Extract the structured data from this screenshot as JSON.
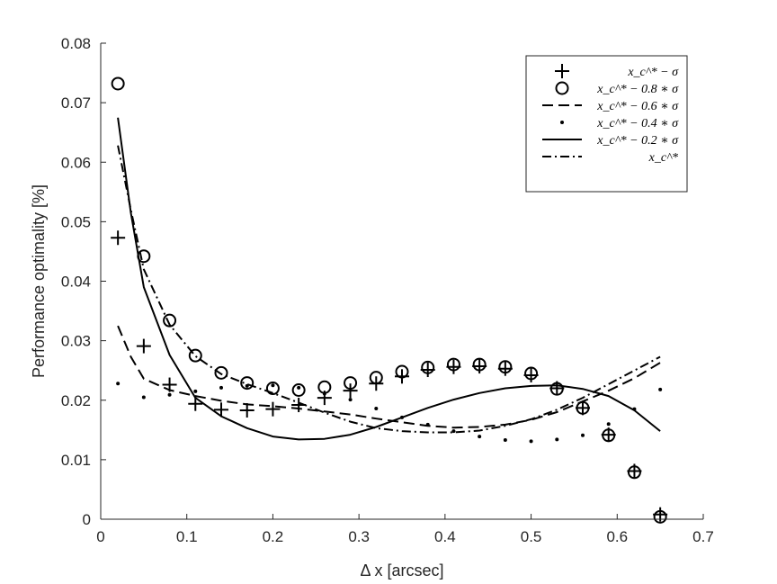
{
  "chart_data": {
    "type": "line",
    "title": "",
    "xlabel": "Δ x [arcsec]",
    "ylabel": "Performance optimality [%]",
    "xlim": [
      0,
      0.7
    ],
    "ylim": [
      0,
      0.08
    ],
    "xticks": [
      0,
      0.1,
      0.2,
      0.3,
      0.4,
      0.5,
      0.6,
      0.7
    ],
    "xtick_labels": [
      "0",
      "0.1",
      "0.2",
      "0.3",
      "0.4",
      "0.5",
      "0.6",
      "0.7"
    ],
    "yticks": [
      0,
      0.01,
      0.02,
      0.03,
      0.04,
      0.05,
      0.06,
      0.07,
      0.08
    ],
    "ytick_labels": [
      "0",
      "0.01",
      "0.02",
      "0.03",
      "0.04",
      "0.05",
      "0.06",
      "0.07",
      "0.08"
    ],
    "legend_position": "top-right",
    "series": [
      {
        "name": "x_c^* − σ",
        "style": "plus",
        "x": [
          0.02,
          0.05,
          0.08,
          0.11,
          0.14,
          0.17,
          0.2,
          0.23,
          0.26,
          0.29,
          0.32,
          0.35,
          0.38,
          0.41,
          0.44,
          0.47,
          0.5,
          0.53,
          0.56,
          0.59,
          0.62,
          0.65
        ],
        "y": [
          0.0473,
          0.0291,
          0.0226,
          0.0194,
          0.0184,
          0.0183,
          0.0185,
          0.0192,
          0.0204,
          0.0216,
          0.0228,
          0.024,
          0.0251,
          0.0256,
          0.0257,
          0.0253,
          0.0242,
          0.022,
          0.0187,
          0.0142,
          0.0081,
          0.0008
        ]
      },
      {
        "name": "x_c^* − 0.8 ∗ σ",
        "style": "circle",
        "x": [
          0.02,
          0.05,
          0.08,
          0.11,
          0.14,
          0.17,
          0.2,
          0.23,
          0.26,
          0.29,
          0.32,
          0.35,
          0.38,
          0.41,
          0.44,
          0.47,
          0.5,
          0.53,
          0.56,
          0.59,
          0.62,
          0.65
        ],
        "y": [
          0.0732,
          0.0442,
          0.0334,
          0.0275,
          0.0246,
          0.0229,
          0.022,
          0.0217,
          0.0222,
          0.0229,
          0.0238,
          0.0248,
          0.0255,
          0.026,
          0.026,
          0.0256,
          0.0245,
          0.0219,
          0.0187,
          0.0141,
          0.0079,
          0.0004
        ]
      },
      {
        "name": "x_c^* − 0.6 ∗ σ",
        "style": "dashed",
        "x": [
          0.02,
          0.035,
          0.05,
          0.08,
          0.11,
          0.14,
          0.17,
          0.2,
          0.23,
          0.26,
          0.29,
          0.32,
          0.35,
          0.38,
          0.41,
          0.44,
          0.47,
          0.5,
          0.53,
          0.56,
          0.59,
          0.62,
          0.65
        ],
        "y": [
          0.0325,
          0.0273,
          0.0236,
          0.0217,
          0.0207,
          0.0199,
          0.0193,
          0.019,
          0.0186,
          0.0181,
          0.0176,
          0.0169,
          0.0163,
          0.0157,
          0.0154,
          0.0155,
          0.0159,
          0.0167,
          0.018,
          0.0198,
          0.0216,
          0.0237,
          0.0263
        ]
      },
      {
        "name": "x_c^* − 0.4 ∗ σ",
        "style": "dot",
        "x": [
          0.02,
          0.05,
          0.08,
          0.11,
          0.14,
          0.17,
          0.2,
          0.23,
          0.26,
          0.29,
          0.32,
          0.35,
          0.38,
          0.41,
          0.44,
          0.47,
          0.5,
          0.53,
          0.56,
          0.59,
          0.62,
          0.65
        ],
        "y": [
          0.0228,
          0.0205,
          0.0209,
          0.0215,
          0.0221,
          0.0224,
          0.0225,
          0.0221,
          0.0211,
          0.0201,
          0.0186,
          0.0171,
          0.0159,
          0.0148,
          0.0139,
          0.0133,
          0.0131,
          0.0134,
          0.0141,
          0.016,
          0.0185,
          0.0218
        ]
      },
      {
        "name": "x_c^* − 0.2 ∗ σ",
        "style": "solid",
        "x": [
          0.02,
          0.035,
          0.05,
          0.08,
          0.11,
          0.14,
          0.17,
          0.2,
          0.23,
          0.26,
          0.29,
          0.32,
          0.35,
          0.38,
          0.41,
          0.44,
          0.47,
          0.5,
          0.53,
          0.56,
          0.59,
          0.62,
          0.65
        ],
        "y": [
          0.0675,
          0.0515,
          0.039,
          0.0276,
          0.0204,
          0.0173,
          0.0153,
          0.0139,
          0.0134,
          0.0135,
          0.0142,
          0.0155,
          0.0171,
          0.0187,
          0.0201,
          0.0212,
          0.022,
          0.0224,
          0.0225,
          0.0219,
          0.0207,
          0.0183,
          0.0148
        ]
      },
      {
        "name": "x_c^*",
        "style": "dashdot",
        "x": [
          0.02,
          0.035,
          0.05,
          0.08,
          0.11,
          0.14,
          0.17,
          0.2,
          0.23,
          0.26,
          0.29,
          0.32,
          0.35,
          0.38,
          0.41,
          0.44,
          0.47,
          0.5,
          0.53,
          0.56,
          0.59,
          0.62,
          0.65
        ],
        "y": [
          0.0628,
          0.052,
          0.042,
          0.0327,
          0.0274,
          0.0244,
          0.0227,
          0.0212,
          0.0196,
          0.0179,
          0.0164,
          0.0153,
          0.0148,
          0.0146,
          0.0146,
          0.0149,
          0.0157,
          0.0168,
          0.0184,
          0.0204,
          0.0227,
          0.025,
          0.0273
        ]
      }
    ]
  }
}
